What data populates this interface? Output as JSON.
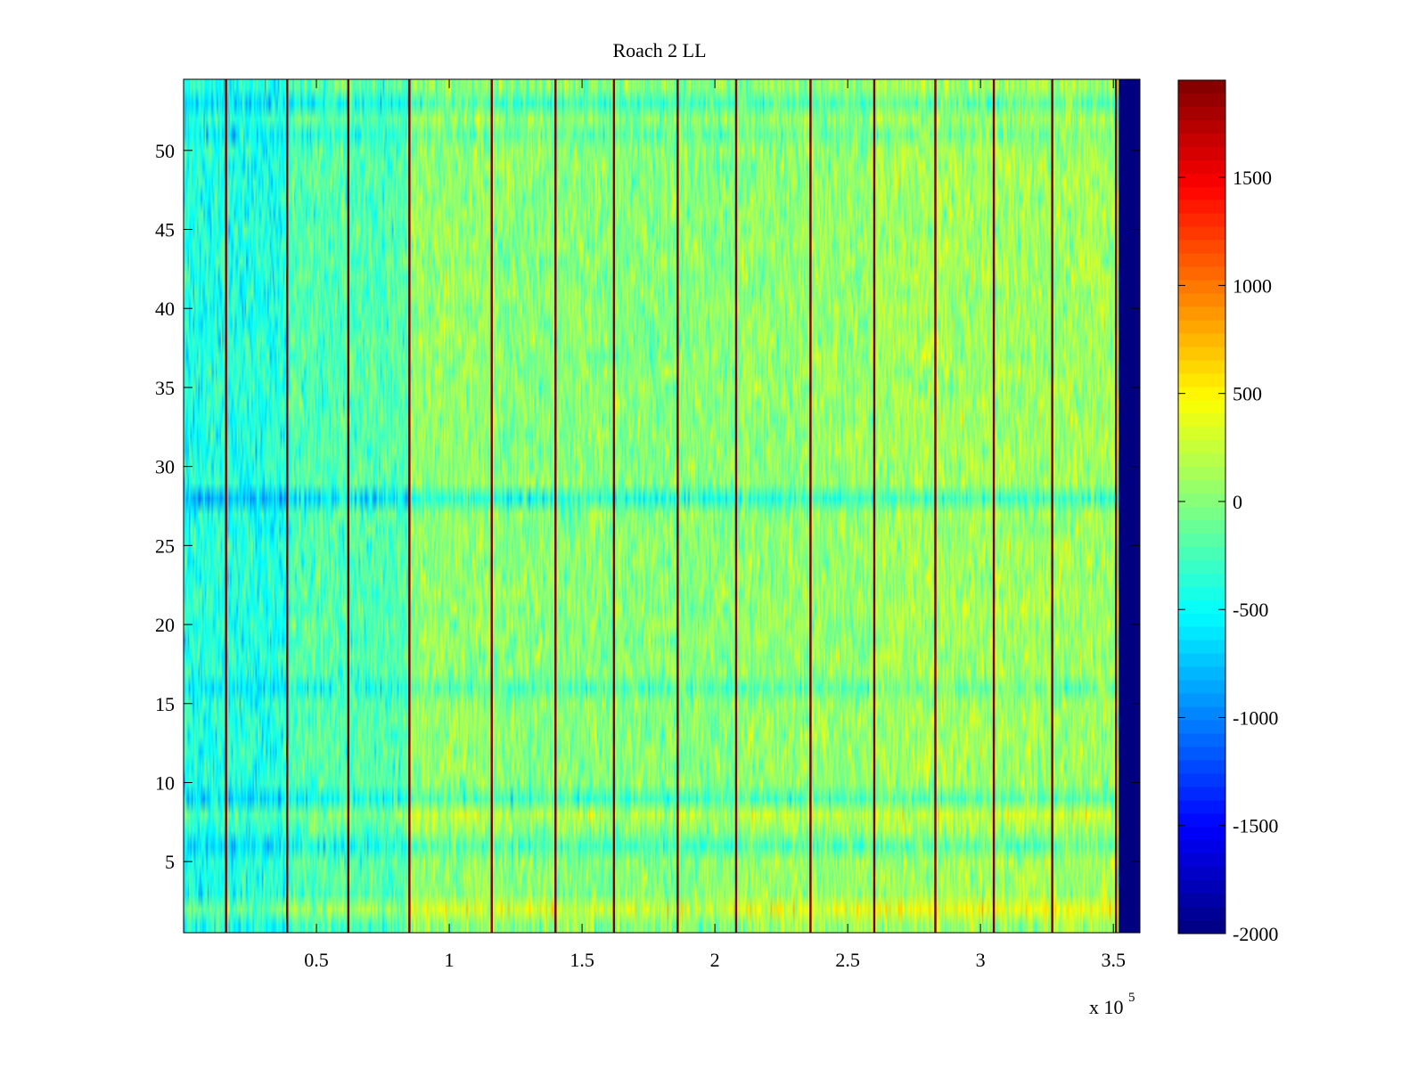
{
  "chart_data": {
    "type": "heatmap",
    "title": "Roach 2 LL",
    "xlabel": "",
    "ylabel": "",
    "x_multiplier_label": "x 10",
    "x_multiplier_exponent": "5",
    "xlim": [
      0,
      360000
    ],
    "ylim": [
      0.5,
      54.5
    ],
    "x_ticks": [
      {
        "value": 50000,
        "label": "0.5"
      },
      {
        "value": 100000,
        "label": "1"
      },
      {
        "value": 150000,
        "label": "1.5"
      },
      {
        "value": 200000,
        "label": "2"
      },
      {
        "value": 250000,
        "label": "2.5"
      },
      {
        "value": 300000,
        "label": "3"
      },
      {
        "value": 350000,
        "label": "3.5"
      }
    ],
    "y_ticks": [
      {
        "value": 5,
        "label": "5"
      },
      {
        "value": 10,
        "label": "10"
      },
      {
        "value": 15,
        "label": "15"
      },
      {
        "value": 20,
        "label": "20"
      },
      {
        "value": 25,
        "label": "25"
      },
      {
        "value": 30,
        "label": "30"
      },
      {
        "value": 35,
        "label": "35"
      },
      {
        "value": 40,
        "label": "40"
      },
      {
        "value": 45,
        "label": "45"
      },
      {
        "value": 50,
        "label": "50"
      }
    ],
    "rows": 54,
    "data_end_x": 352000,
    "fill_value_after_end": -2000,
    "colormap": "jet",
    "clim": [
      -2000,
      1950
    ],
    "colorbar": {
      "ticks": [
        {
          "value": 1500,
          "label": "1500"
        },
        {
          "value": 1000,
          "label": "1000"
        },
        {
          "value": 500,
          "label": "500"
        },
        {
          "value": 0,
          "label": "0"
        },
        {
          "value": -500,
          "label": "-500"
        },
        {
          "value": -1000,
          "label": "-1000"
        },
        {
          "value": -1500,
          "label": "-1500"
        },
        {
          "value": -2000,
          "label": "-2000"
        }
      ]
    },
    "vertical_streaks_x": [
      16000,
      39000,
      62000,
      85000,
      116000,
      140000,
      162000,
      186000,
      208000,
      236000,
      260000,
      283000,
      305000,
      327000,
      351000
    ],
    "column_segments": [
      {
        "x_start": 0,
        "x_end": 40000,
        "mean": -400
      },
      {
        "x_start": 40000,
        "x_end": 85000,
        "mean": -200
      },
      {
        "x_start": 85000,
        "x_end": 120000,
        "mean": 50
      },
      {
        "x_start": 120000,
        "x_end": 210000,
        "mean": 0
      },
      {
        "x_start": 210000,
        "x_end": 260000,
        "mean": 50
      },
      {
        "x_start": 260000,
        "x_end": 352000,
        "mean": 100
      }
    ],
    "row_offsets": [
      {
        "row": 2,
        "offset": 300
      },
      {
        "row": 6,
        "offset": -250
      },
      {
        "row": 8,
        "offset": 150
      },
      {
        "row": 9,
        "offset": -250
      },
      {
        "row": 16,
        "offset": -200
      },
      {
        "row": 28,
        "offset": -400
      },
      {
        "row": 51,
        "offset": -150
      },
      {
        "row": 53,
        "offset": -250
      }
    ]
  }
}
